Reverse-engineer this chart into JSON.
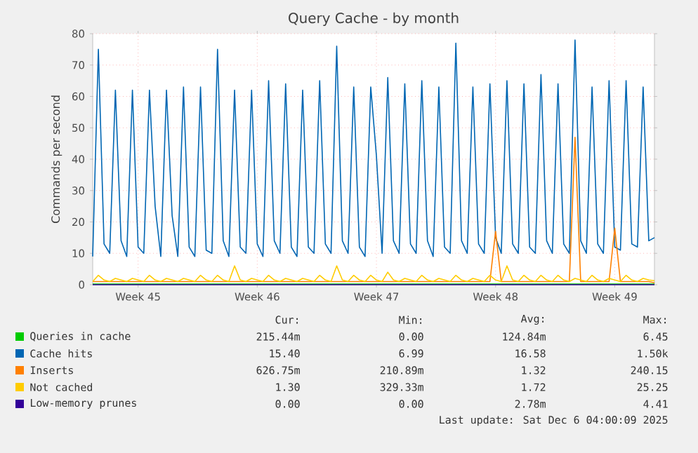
{
  "chart_data": {
    "type": "line",
    "title": "Query Cache - by month",
    "ylabel": "Commands per second",
    "categories": [
      null,
      null,
      null,
      null,
      null,
      null,
      null,
      null,
      "Week 45",
      null,
      null,
      null,
      null,
      null,
      null,
      null,
      null,
      null,
      null,
      null,
      null,
      null,
      null,
      null,
      null,
      null,
      null,
      null,
      null,
      "Week 46",
      null,
      null,
      null,
      null,
      null,
      null,
      null,
      null,
      null,
      null,
      null,
      null,
      null,
      null,
      null,
      null,
      null,
      null,
      null,
      null,
      "Week 47",
      null,
      null,
      null,
      null,
      null,
      null,
      null,
      null,
      null,
      null,
      null,
      null,
      null,
      null,
      null,
      null,
      null,
      null,
      null,
      null,
      "Week 48",
      null,
      null,
      null,
      null,
      null,
      null,
      null,
      null,
      null,
      null,
      null,
      null,
      null,
      null,
      null,
      null,
      null,
      null,
      null,
      null,
      "Week 49",
      null,
      null,
      null,
      null,
      null,
      null,
      null
    ],
    "ylim": [
      0,
      80
    ],
    "yticks": [
      0,
      10,
      20,
      30,
      40,
      50,
      60,
      70,
      80
    ],
    "grid": true,
    "legend": "bottom",
    "series": [
      {
        "name": "Queries in cache",
        "color": "#00cc00",
        "values": [
          0.2,
          0.2,
          0.2,
          0.2,
          0.2,
          0.2,
          0.2,
          0.2,
          0.2,
          0.2,
          0.2,
          0.2,
          0.2,
          0.2,
          0.2,
          0.2,
          0.2,
          0.2,
          0.2,
          0.2,
          0.2,
          0.2,
          0.2,
          0.2,
          0.2,
          0.2,
          0.2,
          0.2,
          0.2,
          0.2,
          0.2,
          0.2,
          0.2,
          0.2,
          0.2,
          0.2,
          0.2,
          0.2,
          0.2,
          0.2,
          0.2,
          0.2,
          0.2,
          0.2,
          0.2,
          0.2,
          0.2,
          0.2,
          0.2,
          0.2,
          0.2,
          0.2,
          0.2,
          0.2,
          0.2,
          0.2,
          0.2,
          0.2,
          0.2,
          0.2,
          0.2,
          0.2,
          0.2,
          0.2,
          0.2,
          0.2,
          0.2,
          0.2,
          0.2,
          0.2,
          0.2,
          0.2,
          0.2,
          0.2,
          0.2,
          0.2,
          0.2,
          0.2,
          0.2,
          0.2,
          0.2,
          0.2,
          0.2,
          0.2,
          0.2,
          0.2,
          0.2,
          0.2,
          0.2,
          0.2,
          0.2,
          0.2,
          0.2,
          0.2,
          0.2,
          0.2,
          0.2,
          0.2,
          0.2,
          0.2
        ]
      },
      {
        "name": "Cache hits",
        "color": "#0066b3",
        "values": [
          9,
          75,
          13,
          10,
          62,
          14,
          9,
          62,
          12,
          10,
          62,
          25,
          9,
          62,
          22,
          9,
          63,
          12,
          9,
          63,
          11,
          10,
          75,
          14,
          9,
          62,
          12,
          10,
          62,
          13,
          9,
          65,
          14,
          10,
          64,
          12,
          9,
          62,
          12,
          10,
          65,
          13,
          10,
          76,
          14,
          10,
          63,
          12,
          9,
          63,
          41,
          10,
          66,
          14,
          10,
          64,
          13,
          10,
          65,
          14,
          9,
          63,
          12,
          10,
          77,
          14,
          10,
          63,
          13,
          10,
          64,
          15,
          10,
          65,
          13,
          10,
          64,
          12,
          10,
          67,
          14,
          10,
          64,
          13,
          10,
          78,
          14,
          10,
          63,
          13,
          10,
          65,
          12,
          11,
          65,
          13,
          12,
          63,
          14,
          15
        ]
      },
      {
        "name": "Inserts",
        "color": "#ff8000",
        "values": [
          1,
          1,
          1,
          1,
          1,
          1,
          1,
          1,
          1,
          1,
          1,
          1,
          1,
          1,
          1,
          1,
          1,
          1,
          1,
          1,
          1,
          1,
          1,
          1,
          1,
          1,
          1,
          1,
          1,
          1,
          1,
          1,
          1,
          1,
          1,
          1,
          1,
          1,
          1,
          1,
          1,
          1,
          1,
          1,
          1,
          1,
          1,
          1,
          1,
          1,
          1,
          1,
          1,
          1,
          1,
          1,
          1,
          1,
          1,
          1,
          1,
          1,
          1,
          1,
          1,
          1,
          1,
          1,
          1,
          1,
          1,
          17,
          1,
          1,
          1,
          1,
          1,
          1,
          1,
          1,
          1,
          1,
          1,
          1,
          1,
          47,
          1,
          1,
          1,
          1,
          1,
          1,
          18,
          1,
          1,
          1,
          1,
          1,
          1,
          0.6
        ]
      },
      {
        "name": "Not cached",
        "color": "#ffcc00",
        "values": [
          1,
          3,
          1.5,
          1,
          2,
          1.5,
          1,
          2,
          1.5,
          1,
          3,
          1.5,
          1,
          2,
          1.5,
          1,
          2,
          1.5,
          1,
          3,
          1.5,
          1,
          3,
          1.5,
          1,
          6,
          1.5,
          1,
          2,
          1.5,
          1,
          3,
          1.5,
          1,
          2,
          1.5,
          1,
          2,
          1.5,
          1,
          3,
          1.5,
          1,
          6,
          1.5,
          1,
          3,
          1.5,
          1,
          3,
          1.5,
          1,
          4,
          1.5,
          1,
          2,
          1.5,
          1,
          3,
          1.5,
          1,
          2,
          1.5,
          1,
          3,
          1.5,
          1,
          2,
          1.5,
          1,
          3,
          1.5,
          1,
          6,
          1.5,
          1,
          3,
          1.5,
          1,
          3,
          1.5,
          1,
          3,
          1.5,
          1,
          2,
          1.5,
          1,
          3,
          1.5,
          1,
          2,
          1.5,
          1,
          3,
          1.5,
          1,
          2,
          1.5,
          1.3
        ]
      },
      {
        "name": "Low-memory prunes",
        "color": "#330099",
        "values": [
          0,
          0,
          0,
          0,
          0,
          0,
          0,
          0,
          0,
          0,
          0,
          0,
          0,
          0,
          0,
          0,
          0,
          0,
          0,
          0,
          0,
          0,
          0,
          0,
          0,
          0,
          0,
          0,
          0,
          0,
          0,
          0,
          0,
          0,
          0,
          0,
          0,
          0,
          0,
          0,
          0,
          0,
          0,
          0,
          0,
          0,
          0,
          0,
          0,
          0,
          0,
          0,
          0,
          0,
          0,
          0,
          0,
          0,
          0,
          0,
          0,
          0,
          0,
          0,
          0,
          0,
          0,
          0,
          0,
          0,
          0,
          0,
          0,
          0,
          0,
          0,
          0,
          0,
          0,
          0,
          0,
          0,
          0,
          0,
          0,
          0,
          0,
          0,
          0,
          0,
          0,
          0,
          0,
          0,
          0,
          0,
          0,
          0,
          0,
          0
        ]
      }
    ],
    "annotations": [
      "Cur:",
      "Min:",
      "Avg:",
      "Max:",
      "215.44m",
      "0.00",
      "124.84m",
      "6.45",
      "15.40",
      "6.99",
      "16.58",
      "1.50k",
      "626.75m",
      "210.89m",
      "1.32",
      "240.15",
      "1.30",
      "329.33m",
      "1.72",
      "25.25",
      "0.00",
      "0.00",
      "2.78m",
      "4.41",
      "Last update: Sat Dec  6 04:00:09 2025"
    ]
  }
}
